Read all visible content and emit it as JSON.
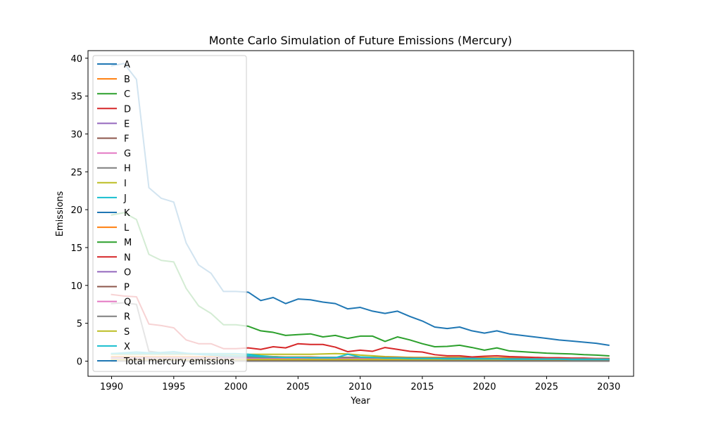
{
  "chart_data": {
    "type": "line",
    "title": "Monte Carlo Simulation of Future Emissions (Mercury)",
    "xlabel": "Year",
    "ylabel": "Emissions",
    "xlim": [
      1988.1,
      2032
    ],
    "ylim": [
      -2.0,
      41.0
    ],
    "xticks": [
      1990,
      1995,
      2000,
      2005,
      2010,
      2015,
      2020,
      2025,
      2030
    ],
    "yticks": [
      0,
      5,
      10,
      15,
      20,
      25,
      30,
      35,
      40
    ],
    "legend_position": "upper left",
    "x": [
      1990,
      1991,
      1992,
      1993,
      1994,
      1995,
      1996,
      1997,
      1998,
      1999,
      2000,
      2001,
      2002,
      2003,
      2004,
      2005,
      2006,
      2007,
      2008,
      2009,
      2010,
      2011,
      2012,
      2013,
      2014,
      2015,
      2016,
      2017,
      2018,
      2019,
      2020,
      2021,
      2022,
      2023,
      2024,
      2025,
      2026,
      2027,
      2028,
      2029,
      2030
    ],
    "series": [
      {
        "name": "A",
        "color": "#1f77b4",
        "values": [
          null,
          null,
          null,
          null,
          null,
          null,
          null,
          null,
          null,
          null,
          null,
          null,
          null,
          null,
          null,
          null,
          null,
          null,
          null,
          null,
          null,
          null,
          null,
          null,
          null,
          null,
          null,
          null,
          null,
          null,
          null,
          null,
          null,
          null,
          null,
          null,
          null,
          null,
          null,
          null,
          null
        ]
      },
      {
        "name": "B",
        "color": "#ff7f0e",
        "values": [
          0.3,
          0.3,
          0.3,
          0.3,
          0.3,
          0.3,
          0.3,
          0.3,
          0.3,
          0.3,
          0.3,
          0.3,
          0.3,
          0.3,
          0.3,
          0.3,
          0.3,
          0.3,
          0.3,
          0.3,
          0.3,
          0.3,
          0.3,
          0.3,
          0.3,
          0.3,
          0.2,
          0.2,
          0.2,
          0.2,
          0.2,
          0.2,
          0.2,
          0.2,
          0.2,
          0.2,
          0.2,
          0.2,
          0.2,
          0.2,
          0.2
        ]
      },
      {
        "name": "C",
        "color": "#2ca02c",
        "values": [
          0.5,
          0.5,
          0.5,
          0.5,
          0.5,
          0.5,
          0.5,
          0.5,
          0.5,
          0.5,
          0.5,
          0.5,
          0.5,
          0.6,
          0.5,
          0.5,
          0.5,
          0.5,
          0.5,
          0.5,
          0.5,
          0.5,
          0.5,
          0.5,
          0.5,
          0.4,
          0.4,
          0.4,
          0.4,
          0.4,
          0.4,
          0.4,
          0.4,
          0.4,
          0.4,
          0.4,
          0.3,
          0.3,
          0.3,
          0.3,
          0.3
        ]
      },
      {
        "name": "D",
        "color": "#d62728",
        "values": [
          0.2,
          0.2,
          0.2,
          0.2,
          0.2,
          0.2,
          0.2,
          0.2,
          0.2,
          0.2,
          0.2,
          0.2,
          0.2,
          0.2,
          0.2,
          0.2,
          0.2,
          0.2,
          0.2,
          0.2,
          0.2,
          0.2,
          0.2,
          0.2,
          0.2,
          0.2,
          0.2,
          0.2,
          0.2,
          0.2,
          0.2,
          0.2,
          0.2,
          0.2,
          0.2,
          0.2,
          0.2,
          0.2,
          0.2,
          0.2,
          0.2
        ]
      },
      {
        "name": "E",
        "color": "#9467bd",
        "values": [
          0.1,
          0.1,
          0.1,
          0.1,
          0.1,
          0.1,
          0.1,
          0.1,
          0.1,
          0.1,
          0.1,
          0.1,
          0.1,
          0.1,
          0.1,
          0.1,
          0.1,
          0.1,
          0.1,
          0.1,
          0.1,
          0.1,
          0.1,
          0.1,
          0.1,
          0.1,
          0.1,
          0.1,
          0.1,
          0.1,
          0.1,
          0.1,
          0.1,
          0.1,
          0.1,
          0.1,
          0.1,
          0.1,
          0.1,
          0.1,
          0.1
        ]
      },
      {
        "name": "F",
        "color": "#8c564b",
        "values": [
          0.05,
          0.05,
          0.05,
          0.05,
          0.05,
          0.05,
          0.05,
          0.05,
          0.05,
          0.05,
          0.05,
          0.05,
          0.05,
          0.05,
          0.05,
          0.05,
          0.05,
          0.05,
          0.05,
          0.05,
          0.05,
          0.05,
          0.05,
          0.05,
          0.05,
          0.05,
          0.05,
          0.05,
          0.05,
          0.05,
          0.05,
          0.05,
          0.05,
          0.05,
          0.05,
          0.05,
          0.05,
          0.05,
          0.05,
          0.05,
          0.05
        ]
      },
      {
        "name": "G",
        "color": "#e377c2",
        "values": [
          0.1,
          0.1,
          0.1,
          0.1,
          0.1,
          0.1,
          0.1,
          0.1,
          0.1,
          0.1,
          0.1,
          0.1,
          0.1,
          0.1,
          0.1,
          0.1,
          0.1,
          0.1,
          0.1,
          0.1,
          0.1,
          0.1,
          0.1,
          0.1,
          0.1,
          0.1,
          0.1,
          0.1,
          0.1,
          0.1,
          0.1,
          0.1,
          0.1,
          0.1,
          0.1,
          0.1,
          0.1,
          0.1,
          0.1,
          0.1,
          0.1
        ]
      },
      {
        "name": "H",
        "color": "#7f7f7f",
        "values": [
          0.0,
          0.0,
          0.0,
          0.0,
          0.0,
          0.0,
          0.0,
          0.0,
          0.0,
          0.0,
          0.0,
          0.0,
          0.0,
          0.0,
          0.0,
          0.0,
          0.0,
          0.0,
          0.0,
          0.0,
          0.0,
          0.0,
          0.0,
          0.0,
          0.0,
          0.0,
          0.0,
          0.0,
          0.0,
          0.0,
          0.0,
          0.0,
          0.0,
          0.0,
          0.0,
          0.0,
          0.0,
          0.0,
          0.0,
          0.0,
          0.0
        ]
      },
      {
        "name": "I",
        "color": "#bcbd22",
        "values": [
          0.9,
          0.9,
          0.9,
          0.9,
          0.9,
          0.9,
          0.9,
          0.9,
          0.9,
          0.9,
          0.9,
          0.9,
          0.9,
          0.9,
          0.9,
          0.9,
          0.9,
          0.95,
          1.0,
          0.95,
          0.8,
          0.7,
          0.6,
          0.55,
          0.5,
          0.5,
          0.5,
          0.5,
          0.5,
          0.5,
          0.45,
          0.45,
          0.45,
          0.4,
          0.4,
          0.4,
          0.4,
          0.35,
          0.35,
          0.35,
          0.35
        ]
      },
      {
        "name": "J",
        "color": "#17becf",
        "values": [
          1.0,
          1.0,
          1.0,
          1.0,
          1.0,
          1.0,
          1.0,
          1.0,
          1.0,
          1.0,
          1.0,
          0.9,
          0.7,
          0.6,
          0.5,
          0.5,
          0.45,
          0.4,
          0.4,
          0.4,
          0.4,
          0.4,
          0.4,
          0.4,
          0.4,
          0.4,
          0.4,
          0.4,
          0.35,
          0.35,
          0.35,
          0.35,
          0.35,
          0.35,
          0.35,
          0.3,
          0.3,
          0.3,
          0.3,
          0.3,
          0.3
        ]
      },
      {
        "name": "K",
        "color": "#1f77b4",
        "values": [
          39.0,
          39.3,
          37.2,
          22.9,
          21.5,
          21.0,
          15.6,
          12.7,
          11.6,
          9.2,
          9.2,
          9.1,
          8.0,
          8.4,
          7.6,
          8.2,
          8.1,
          7.8,
          7.6,
          6.9,
          7.1,
          6.6,
          6.3,
          6.6,
          5.9,
          5.3,
          4.5,
          4.3,
          4.5,
          4.0,
          3.7,
          4.0,
          3.6,
          3.4,
          3.2,
          3.0,
          2.8,
          2.65,
          2.5,
          2.35,
          2.1
        ]
      },
      {
        "name": "L",
        "color": "#ff7f0e",
        "values": [
          0.6,
          0.6,
          0.6,
          0.6,
          0.6,
          0.6,
          0.6,
          0.6,
          0.6,
          0.6,
          0.6,
          0.6,
          0.6,
          0.6,
          0.55,
          0.55,
          0.55,
          0.5,
          0.5,
          0.5,
          0.5,
          0.5,
          0.5,
          0.5,
          0.45,
          0.45,
          0.45,
          0.45,
          0.4,
          0.4,
          0.4,
          0.4,
          0.4,
          0.4,
          0.35,
          0.35,
          0.35,
          0.35,
          0.3,
          0.3,
          0.3
        ]
      },
      {
        "name": "M",
        "color": "#2ca02c",
        "values": [
          19.3,
          19.6,
          18.7,
          14.1,
          13.3,
          13.1,
          9.6,
          7.3,
          6.3,
          4.8,
          4.8,
          4.6,
          4.0,
          3.8,
          3.4,
          3.5,
          3.6,
          3.2,
          3.4,
          3.0,
          3.3,
          3.3,
          2.6,
          3.2,
          2.8,
          2.3,
          1.9,
          1.95,
          2.1,
          1.8,
          1.45,
          1.75,
          1.35,
          1.25,
          1.15,
          1.05,
          1.0,
          0.95,
          0.85,
          0.8,
          0.7
        ]
      },
      {
        "name": "N",
        "color": "#d62728",
        "values": [
          8.8,
          8.6,
          8.5,
          4.9,
          4.7,
          4.4,
          2.8,
          2.3,
          2.3,
          1.65,
          1.65,
          1.75,
          1.55,
          1.9,
          1.75,
          2.3,
          2.2,
          2.2,
          1.85,
          1.25,
          1.45,
          1.3,
          1.8,
          1.55,
          1.3,
          1.2,
          0.85,
          0.7,
          0.7,
          0.55,
          0.65,
          0.7,
          0.6,
          0.55,
          0.5,
          0.45,
          0.45,
          0.4,
          0.4,
          0.35,
          0.35
        ]
      },
      {
        "name": "O",
        "color": "#9467bd",
        "values": [
          0.4,
          0.4,
          0.4,
          0.4,
          0.4,
          0.4,
          0.4,
          0.4,
          0.4,
          0.4,
          0.4,
          0.4,
          0.4,
          0.4,
          0.4,
          0.4,
          0.4,
          0.35,
          0.35,
          0.35,
          0.35,
          0.35,
          0.3,
          0.3,
          0.3,
          0.3,
          0.3,
          0.3,
          0.3,
          0.3,
          0.3,
          0.25,
          0.25,
          0.25,
          0.25,
          0.25,
          0.25,
          0.2,
          0.2,
          0.2,
          0.2
        ]
      },
      {
        "name": "P",
        "color": "#8c564b",
        "values": [
          0.15,
          0.15,
          0.15,
          0.15,
          0.15,
          0.15,
          0.15,
          0.15,
          0.15,
          0.15,
          0.15,
          0.15,
          0.15,
          0.15,
          0.15,
          0.15,
          0.15,
          0.15,
          0.15,
          0.15,
          0.15,
          0.15,
          0.15,
          0.15,
          0.15,
          0.15,
          0.15,
          0.15,
          0.15,
          0.15,
          0.15,
          0.15,
          0.15,
          0.15,
          0.15,
          0.15,
          0.15,
          0.15,
          0.15,
          0.15,
          0.15
        ]
      },
      {
        "name": "Q",
        "color": "#e377c2",
        "values": [
          0.3,
          0.3,
          0.3,
          0.3,
          0.3,
          0.3,
          0.3,
          0.3,
          0.3,
          0.3,
          0.3,
          0.3,
          0.3,
          0.3,
          0.3,
          0.3,
          0.3,
          0.3,
          0.3,
          0.3,
          0.3,
          0.3,
          0.3,
          0.3,
          0.3,
          0.3,
          0.3,
          0.3,
          0.3,
          0.3,
          0.3,
          0.3,
          0.3,
          0.3,
          0.3,
          0.3,
          0.3,
          0.3,
          0.3,
          0.3,
          0.3
        ]
      },
      {
        "name": "R",
        "color": "#7f7f7f",
        "values": [
          7.6,
          7.7,
          7.5,
          1.3,
          1.1,
          1.2,
          1.0,
          0.9,
          0.8,
          0.6,
          0.6,
          0.6,
          0.5,
          0.5,
          0.5,
          0.5,
          0.5,
          0.5,
          0.5,
          0.5,
          0.5,
          0.45,
          0.45,
          0.45,
          0.4,
          0.4,
          0.4,
          0.4,
          0.4,
          0.4,
          0.35,
          0.35,
          0.35,
          0.35,
          0.3,
          0.3,
          0.3,
          0.3,
          0.3,
          0.3,
          0.3
        ]
      },
      {
        "name": "S",
        "color": "#bcbd22",
        "values": [
          0.2,
          0.2,
          0.2,
          0.2,
          0.2,
          0.2,
          0.2,
          0.2,
          0.2,
          0.2,
          0.2,
          0.2,
          0.2,
          0.2,
          0.2,
          0.2,
          0.2,
          0.2,
          0.2,
          0.2,
          0.2,
          0.2,
          0.2,
          0.2,
          0.2,
          0.2,
          0.2,
          0.2,
          0.2,
          0.2,
          0.2,
          0.2,
          0.2,
          0.2,
          0.2,
          0.2,
          0.2,
          0.2,
          0.2,
          0.2,
          0.2
        ]
      },
      {
        "name": "X",
        "color": "#17becf",
        "values": [
          1.0,
          1.1,
          1.2,
          1.1,
          1.15,
          1.25,
          1.05,
          0.9,
          0.8,
          0.75,
          0.7,
          0.7,
          0.6,
          0.55,
          0.5,
          0.5,
          0.45,
          0.45,
          0.45,
          0.9,
          0.55,
          0.5,
          0.4,
          0.4,
          0.35,
          0.35,
          0.35,
          0.3,
          0.3,
          0.3,
          0.3,
          0.3,
          0.25,
          0.25,
          0.25,
          0.25,
          0.25,
          0.2,
          0.2,
          0.2,
          0.2
        ]
      },
      {
        "name": "Total mercury emissions",
        "color": "#1f77b4",
        "values": [
          null,
          null,
          null,
          null,
          null,
          null,
          null,
          null,
          null,
          null,
          null,
          null,
          null,
          null,
          null,
          null,
          null,
          null,
          null,
          null,
          null,
          null,
          null,
          null,
          null,
          null,
          null,
          null,
          null,
          null,
          null,
          null,
          null,
          null,
          null,
          null,
          null,
          null,
          null,
          null,
          null
        ]
      }
    ]
  }
}
